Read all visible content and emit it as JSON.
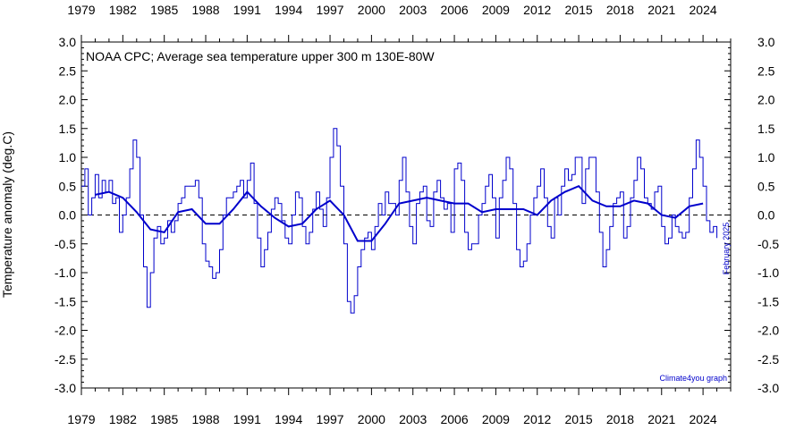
{
  "chart_data": {
    "type": "line",
    "title": "NOAA CPC; Average sea temperature upper 300 m 130E-80W",
    "ylabel": "Temperature anomaly (deg.C)",
    "xlabel": "",
    "xlim": [
      1979,
      2026
    ],
    "ylim": [
      -3.0,
      3.0
    ],
    "x_tick_labels": [
      "1979",
      "1982",
      "1985",
      "1988",
      "1991",
      "1994",
      "1997",
      "2000",
      "2003",
      "2006",
      "2009",
      "2012",
      "2015",
      "2018",
      "2021",
      "2024"
    ],
    "y_tick_labels": [
      "3.0",
      "2.5",
      "2.0",
      "1.5",
      "1.0",
      "0.5",
      "0.0",
      "-0.5",
      "-1.0",
      "-1.5",
      "-2.0",
      "-2.5",
      "-3.0"
    ],
    "zero_line": "dashed",
    "colors": {
      "series": "#0000cc",
      "axis": "#000000"
    },
    "series": [
      {
        "style": "thin",
        "x": [
          1979.0,
          1979.25,
          1979.5,
          1979.75,
          1980.0,
          1980.25,
          1980.5,
          1980.75,
          1981.0,
          1981.25,
          1981.5,
          1981.75,
          1982.0,
          1982.25,
          1982.5,
          1982.75,
          1983.0,
          1983.25,
          1983.5,
          1983.75,
          1984.0,
          1984.25,
          1984.5,
          1984.75,
          1985.0,
          1985.25,
          1985.5,
          1985.75,
          1986.0,
          1986.25,
          1986.5,
          1986.75,
          1987.0,
          1987.25,
          1987.5,
          1987.75,
          1988.0,
          1988.25,
          1988.5,
          1988.75,
          1989.0,
          1989.25,
          1989.5,
          1989.75,
          1990.0,
          1990.25,
          1990.5,
          1990.75,
          1991.0,
          1991.25,
          1991.5,
          1991.75,
          1992.0,
          1992.25,
          1992.5,
          1992.75,
          1993.0,
          1993.25,
          1993.5,
          1993.75,
          1994.0,
          1994.25,
          1994.5,
          1994.75,
          1995.0,
          1995.25,
          1995.5,
          1995.75,
          1996.0,
          1996.25,
          1996.5,
          1996.75,
          1997.0,
          1997.25,
          1997.5,
          1997.75,
          1998.0,
          1998.25,
          1998.5,
          1998.75,
          1999.0,
          1999.25,
          1999.5,
          1999.75,
          2000.0,
          2000.25,
          2000.5,
          2000.75,
          2001.0,
          2001.25,
          2001.5,
          2001.75,
          2002.0,
          2002.25,
          2002.5,
          2002.75,
          2003.0,
          2003.25,
          2003.5,
          2003.75,
          2004.0,
          2004.25,
          2004.5,
          2004.75,
          2005.0,
          2005.25,
          2005.5,
          2005.75,
          2006.0,
          2006.25,
          2006.5,
          2006.75,
          2007.0,
          2007.25,
          2007.5,
          2007.75,
          2008.0,
          2008.25,
          2008.5,
          2008.75,
          2009.0,
          2009.25,
          2009.5,
          2009.75,
          2010.0,
          2010.25,
          2010.5,
          2010.75,
          2011.0,
          2011.25,
          2011.5,
          2011.75,
          2012.0,
          2012.25,
          2012.5,
          2012.75,
          2013.0,
          2013.25,
          2013.5,
          2013.75,
          2014.0,
          2014.25,
          2014.5,
          2014.75,
          2015.0,
          2015.25,
          2015.5,
          2015.75,
          2016.0,
          2016.25,
          2016.5,
          2016.75,
          2017.0,
          2017.25,
          2017.5,
          2017.75,
          2018.0,
          2018.25,
          2018.5,
          2018.75,
          2019.0,
          2019.25,
          2019.5,
          2019.75,
          2020.0,
          2020.25,
          2020.5,
          2020.75,
          2021.0,
          2021.25,
          2021.5,
          2021.75,
          2022.0,
          2022.25,
          2022.5,
          2022.75,
          2023.0,
          2023.25,
          2023.5,
          2023.75,
          2024.0,
          2024.25,
          2024.5,
          2024.75,
          2025.0
        ],
        "y": [
          0.5,
          0.8,
          0.0,
          0.3,
          0.7,
          0.3,
          0.6,
          0.4,
          0.6,
          0.2,
          0.3,
          -0.3,
          0.0,
          0.3,
          0.8,
          1.3,
          1.0,
          0.0,
          -0.9,
          -1.6,
          -1.0,
          -0.4,
          -0.2,
          -0.5,
          -0.4,
          -0.1,
          -0.3,
          -0.1,
          0.2,
          0.3,
          0.5,
          0.5,
          0.5,
          0.6,
          0.3,
          -0.5,
          -0.8,
          -0.9,
          -1.1,
          -1.0,
          -0.6,
          0.0,
          0.3,
          0.3,
          0.4,
          0.5,
          0.6,
          0.3,
          0.6,
          0.9,
          0.2,
          -0.4,
          -0.9,
          -0.6,
          -0.3,
          0.1,
          0.3,
          0.2,
          -0.1,
          -0.4,
          -0.5,
          0.0,
          0.4,
          0.3,
          -0.2,
          -0.5,
          -0.3,
          0.1,
          0.4,
          0.1,
          -0.2,
          0.3,
          1.0,
          1.5,
          1.2,
          0.5,
          -0.5,
          -1.5,
          -1.7,
          -1.4,
          -0.9,
          -0.6,
          -0.4,
          -0.3,
          -0.6,
          -0.2,
          0.2,
          0.0,
          0.4,
          0.2,
          0.2,
          0.0,
          0.6,
          1.0,
          0.4,
          -0.2,
          -0.5,
          0.2,
          0.4,
          0.5,
          -0.1,
          -0.2,
          0.4,
          0.6,
          0.3,
          0.1,
          0.2,
          -0.3,
          0.8,
          0.9,
          0.6,
          -0.3,
          -0.6,
          -0.5,
          -0.5,
          0.0,
          0.2,
          0.5,
          0.7,
          0.3,
          -0.4,
          0.3,
          0.6,
          1.0,
          0.8,
          0.2,
          -0.6,
          -0.9,
          -0.8,
          -0.5,
          0.0,
          0.3,
          0.5,
          0.8,
          0.3,
          -0.2,
          -0.4,
          0.3,
          0.0,
          0.5,
          0.8,
          0.6,
          0.7,
          1.0,
          1.0,
          0.2,
          0.8,
          1.0,
          1.0,
          0.4,
          -0.3,
          -0.9,
          -0.6,
          -0.2,
          0.2,
          0.3,
          0.4,
          -0.4,
          -0.2,
          0.3,
          0.6,
          1.0,
          0.8,
          0.3,
          0.2,
          0.1,
          0.4,
          0.5,
          -0.2,
          -0.5,
          -0.4,
          0.0,
          -0.2,
          -0.3,
          -0.4,
          -0.3,
          0.3,
          0.8,
          1.3,
          1.0,
          0.5,
          -0.1,
          -0.3,
          -0.2,
          -0.4
        ]
      },
      {
        "style": "thick",
        "x": [
          1980.0,
          1981.0,
          1982.0,
          1983.0,
          1984.0,
          1985.0,
          1986.0,
          1987.0,
          1988.0,
          1989.0,
          1990.0,
          1991.0,
          1992.0,
          1993.0,
          1994.0,
          1995.0,
          1996.0,
          1997.0,
          1998.0,
          1999.0,
          2000.0,
          2001.0,
          2002.0,
          2003.0,
          2004.0,
          2005.0,
          2006.0,
          2007.0,
          2008.0,
          2009.0,
          2010.0,
          2011.0,
          2012.0,
          2013.0,
          2014.0,
          2015.0,
          2016.0,
          2017.0,
          2018.0,
          2019.0,
          2020.0,
          2021.0,
          2022.0,
          2023.0,
          2024.0
        ],
        "y": [
          0.35,
          0.4,
          0.3,
          0.05,
          -0.25,
          -0.3,
          0.05,
          0.1,
          -0.15,
          -0.15,
          0.1,
          0.4,
          0.15,
          -0.05,
          -0.2,
          -0.15,
          0.1,
          0.25,
          0.0,
          -0.45,
          -0.45,
          -0.15,
          0.2,
          0.25,
          0.3,
          0.25,
          0.2,
          0.2,
          0.05,
          0.1,
          0.1,
          0.1,
          0.0,
          0.25,
          0.4,
          0.5,
          0.25,
          0.15,
          0.15,
          0.25,
          0.2,
          0.0,
          -0.05,
          0.15,
          0.2
        ]
      }
    ],
    "annotations": [
      "February 2025",
      "Climate4you graph"
    ]
  }
}
